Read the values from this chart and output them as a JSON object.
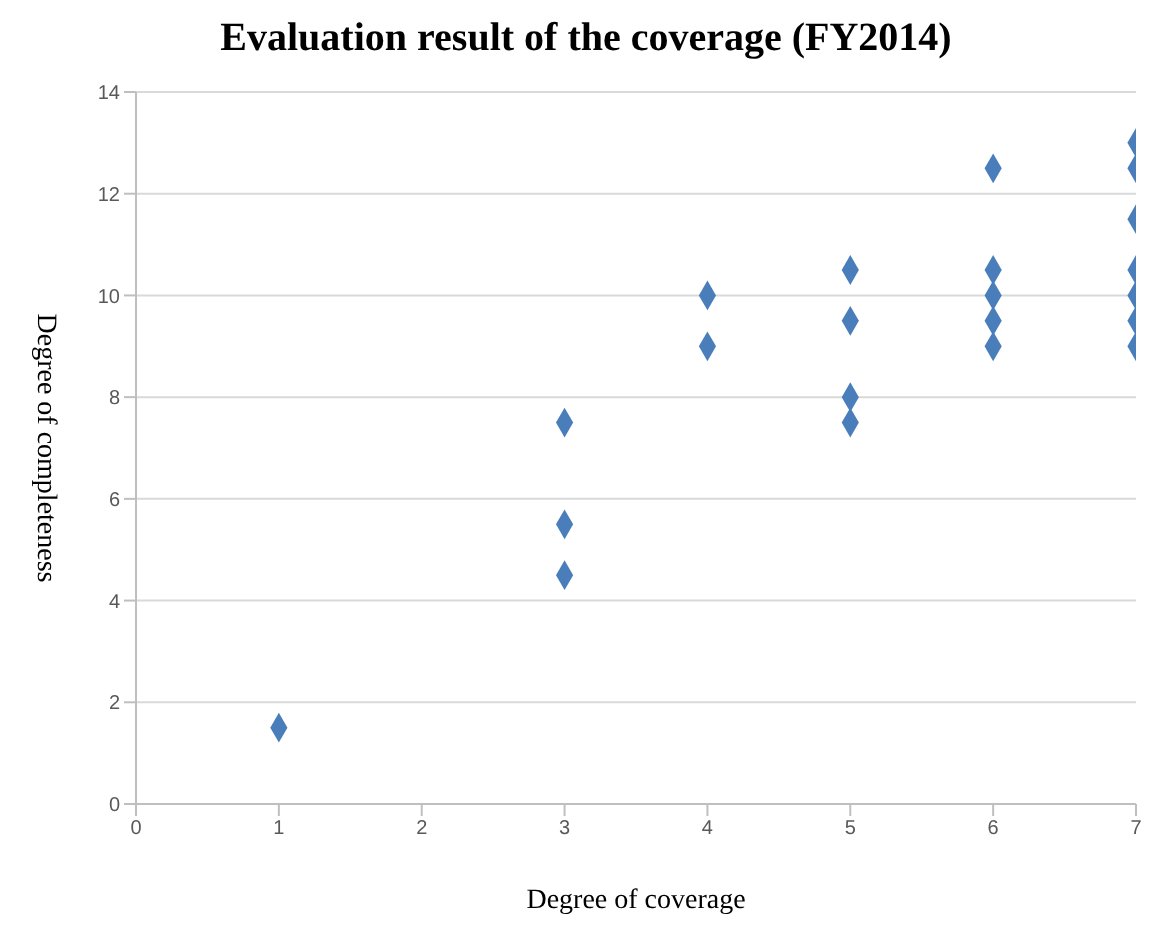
{
  "chart_data": {
    "type": "scatter",
    "title": "Evaluation result of the coverage (FY2014)",
    "xlabel": "Degree of coverage",
    "ylabel": "Degree of completeness",
    "x": [
      1,
      3,
      3,
      3,
      4,
      4,
      5,
      5,
      5,
      5,
      6,
      6,
      6,
      6,
      6,
      7,
      7,
      7,
      7,
      7,
      7,
      7
    ],
    "values": [
      1.5,
      7.5,
      5.5,
      4.5,
      10,
      9,
      10.5,
      9.5,
      8,
      7.5,
      12.5,
      10.5,
      10,
      9.5,
      9,
      13,
      12.5,
      11.5,
      10.5,
      10,
      9.5,
      9
    ],
    "color": "#4a7ebb",
    "marker": "diamond",
    "xlim": [
      0,
      7
    ],
    "xticks": [
      0,
      1,
      2,
      3,
      4,
      5,
      6,
      7
    ],
    "ylim": [
      0,
      14
    ],
    "yticks": [
      0,
      2,
      4,
      6,
      8,
      10,
      12,
      14
    ],
    "grid": "y",
    "legend": false
  }
}
